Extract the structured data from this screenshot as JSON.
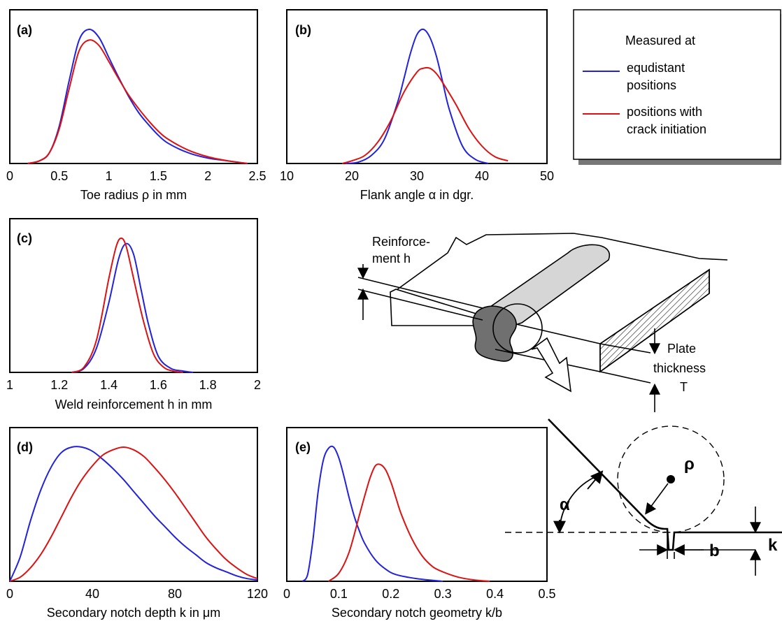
{
  "colors": {
    "equidistant": "#2222dd",
    "crack": "#dd1111"
  },
  "legend": {
    "title": "Measured at",
    "entries": [
      {
        "label_lines": [
          "equdistant",
          "positions"
        ],
        "color": "#2222dd"
      },
      {
        "label_lines": [
          "positions with",
          "crack initiation"
        ],
        "color": "#dd1111"
      }
    ]
  },
  "chart_data": [
    {
      "type": "line",
      "tag": "(a)",
      "xlabel": "Toe radius ρ in mm",
      "xlim": [
        0,
        2.5
      ],
      "xticks": [
        "0",
        "0.5",
        "1",
        "1.5",
        "2",
        "2.5"
      ],
      "yticks": [],
      "series": [
        {
          "color": "#2222dd",
          "x": [
            0.18,
            0.3,
            0.4,
            0.5,
            0.6,
            0.7,
            0.8,
            0.9,
            1.0,
            1.1,
            1.2,
            1.3,
            1.4,
            1.5,
            1.6,
            1.8,
            2.0,
            2.2,
            2.4
          ],
          "y": [
            0.0,
            0.02,
            0.08,
            0.28,
            0.62,
            0.92,
            1.0,
            0.94,
            0.79,
            0.64,
            0.5,
            0.38,
            0.29,
            0.21,
            0.15,
            0.08,
            0.04,
            0.02,
            0.0
          ]
        },
        {
          "color": "#dd1111",
          "x": [
            0.18,
            0.3,
            0.4,
            0.5,
            0.6,
            0.7,
            0.8,
            0.9,
            1.0,
            1.1,
            1.2,
            1.3,
            1.4,
            1.5,
            1.6,
            1.8,
            2.0,
            2.2,
            2.4
          ],
          "y": [
            0.0,
            0.02,
            0.08,
            0.26,
            0.56,
            0.84,
            0.92,
            0.88,
            0.76,
            0.63,
            0.51,
            0.41,
            0.32,
            0.24,
            0.18,
            0.1,
            0.05,
            0.02,
            0.0
          ]
        }
      ]
    },
    {
      "type": "line",
      "tag": "(b)",
      "xlabel": "Flank angle α in dgr.",
      "xlim": [
        10,
        50
      ],
      "xticks": [
        "10",
        "20",
        "30",
        "40",
        "50"
      ],
      "yticks": [],
      "series": [
        {
          "color": "#2222dd",
          "x": [
            19,
            21,
            23,
            25,
            27,
            28,
            29,
            30,
            31,
            32,
            33,
            34,
            35,
            37,
            39,
            41
          ],
          "y": [
            0.0,
            0.01,
            0.06,
            0.18,
            0.45,
            0.63,
            0.82,
            0.96,
            1.0,
            0.94,
            0.8,
            0.6,
            0.4,
            0.13,
            0.03,
            0.0
          ]
        },
        {
          "color": "#dd1111",
          "x": [
            18.5,
            20,
            22,
            24,
            26,
            28,
            30,
            31,
            32,
            33,
            34,
            36,
            38,
            40,
            42,
            44
          ],
          "y": [
            0.0,
            0.02,
            0.06,
            0.16,
            0.32,
            0.53,
            0.68,
            0.71,
            0.71,
            0.67,
            0.6,
            0.44,
            0.26,
            0.13,
            0.05,
            0.02
          ]
        }
      ]
    },
    {
      "type": "line",
      "tag": "(c)",
      "xlabel": "Weld reinforcement h in mm",
      "xlim": [
        1,
        2
      ],
      "xticks": [
        "1",
        "1.2",
        "1.4",
        "1.6",
        "1.8",
        "2"
      ],
      "yticks": [],
      "series": [
        {
          "color": "#2222dd",
          "x": [
            1.25,
            1.3,
            1.35,
            1.4,
            1.44,
            1.47,
            1.5,
            1.53,
            1.56,
            1.6,
            1.65,
            1.7,
            1.74
          ],
          "y": [
            0.0,
            0.03,
            0.18,
            0.52,
            0.85,
            0.96,
            0.88,
            0.62,
            0.36,
            0.12,
            0.03,
            0.01,
            0.0
          ]
        },
        {
          "color": "#dd1111",
          "x": [
            1.25,
            1.3,
            1.35,
            1.4,
            1.43,
            1.45,
            1.47,
            1.5,
            1.54,
            1.58,
            1.62,
            1.66,
            1.7
          ],
          "y": [
            0.0,
            0.04,
            0.24,
            0.7,
            0.94,
            1.0,
            0.94,
            0.7,
            0.38,
            0.14,
            0.04,
            0.01,
            0.0
          ]
        }
      ]
    },
    {
      "type": "line",
      "tag": "(d)",
      "xlabel": "Secondary notch depth k in μm",
      "xlim": [
        0,
        120
      ],
      "xticks": [
        "0",
        "40",
        "80",
        "120"
      ],
      "yticks": [],
      "series": [
        {
          "color": "#2222dd",
          "x": [
            0,
            5,
            10,
            15,
            20,
            25,
            30,
            35,
            40,
            45,
            50,
            55,
            60,
            65,
            70,
            75,
            80,
            85,
            90,
            95,
            100,
            105,
            110,
            115,
            120
          ],
          "y": [
            0.0,
            0.18,
            0.45,
            0.68,
            0.85,
            0.96,
            1.0,
            1.0,
            0.97,
            0.91,
            0.84,
            0.76,
            0.67,
            0.58,
            0.49,
            0.41,
            0.33,
            0.26,
            0.2,
            0.14,
            0.1,
            0.07,
            0.04,
            0.02,
            0.01
          ]
        },
        {
          "color": "#dd1111",
          "x": [
            0,
            5,
            10,
            15,
            20,
            25,
            30,
            35,
            40,
            45,
            50,
            55,
            60,
            65,
            70,
            75,
            80,
            85,
            90,
            95,
            100,
            105,
            110,
            115,
            120
          ],
          "y": [
            0.0,
            0.03,
            0.1,
            0.2,
            0.33,
            0.48,
            0.63,
            0.76,
            0.86,
            0.94,
            0.98,
            1.0,
            0.98,
            0.93,
            0.85,
            0.76,
            0.66,
            0.55,
            0.44,
            0.33,
            0.24,
            0.16,
            0.1,
            0.05,
            0.02
          ]
        }
      ]
    },
    {
      "type": "line",
      "tag": "(e)",
      "xlabel": "Secondary notch geometry k/b",
      "xlim": [
        0,
        0.5
      ],
      "xticks": [
        "0",
        "0.1",
        "0.2",
        "0.3",
        "0.4",
        "0.5"
      ],
      "yticks": [],
      "series": [
        {
          "color": "#2222dd",
          "x": [
            0.03,
            0.04,
            0.05,
            0.06,
            0.07,
            0.08,
            0.09,
            0.1,
            0.11,
            0.12,
            0.13,
            0.14,
            0.15,
            0.17,
            0.19,
            0.21,
            0.25,
            0.3
          ],
          "y": [
            0.0,
            0.05,
            0.3,
            0.66,
            0.9,
            0.99,
            1.0,
            0.92,
            0.78,
            0.62,
            0.48,
            0.37,
            0.28,
            0.16,
            0.09,
            0.05,
            0.02,
            0.0
          ]
        },
        {
          "color": "#dd1111",
          "x": [
            0.08,
            0.1,
            0.12,
            0.14,
            0.15,
            0.16,
            0.17,
            0.18,
            0.19,
            0.2,
            0.21,
            0.22,
            0.24,
            0.26,
            0.28,
            0.3,
            0.33,
            0.36,
            0.39
          ],
          "y": [
            0.0,
            0.06,
            0.22,
            0.5,
            0.64,
            0.77,
            0.86,
            0.87,
            0.83,
            0.74,
            0.62,
            0.5,
            0.32,
            0.19,
            0.11,
            0.07,
            0.03,
            0.01,
            0.0
          ]
        }
      ]
    }
  ],
  "diagram": {
    "reinforcement_label": [
      "Reinforce-",
      "ment h"
    ],
    "plate_label": [
      "Plate",
      "thickness",
      "T"
    ],
    "rho": "ρ",
    "alpha": "α",
    "b": "b",
    "k": "k"
  }
}
